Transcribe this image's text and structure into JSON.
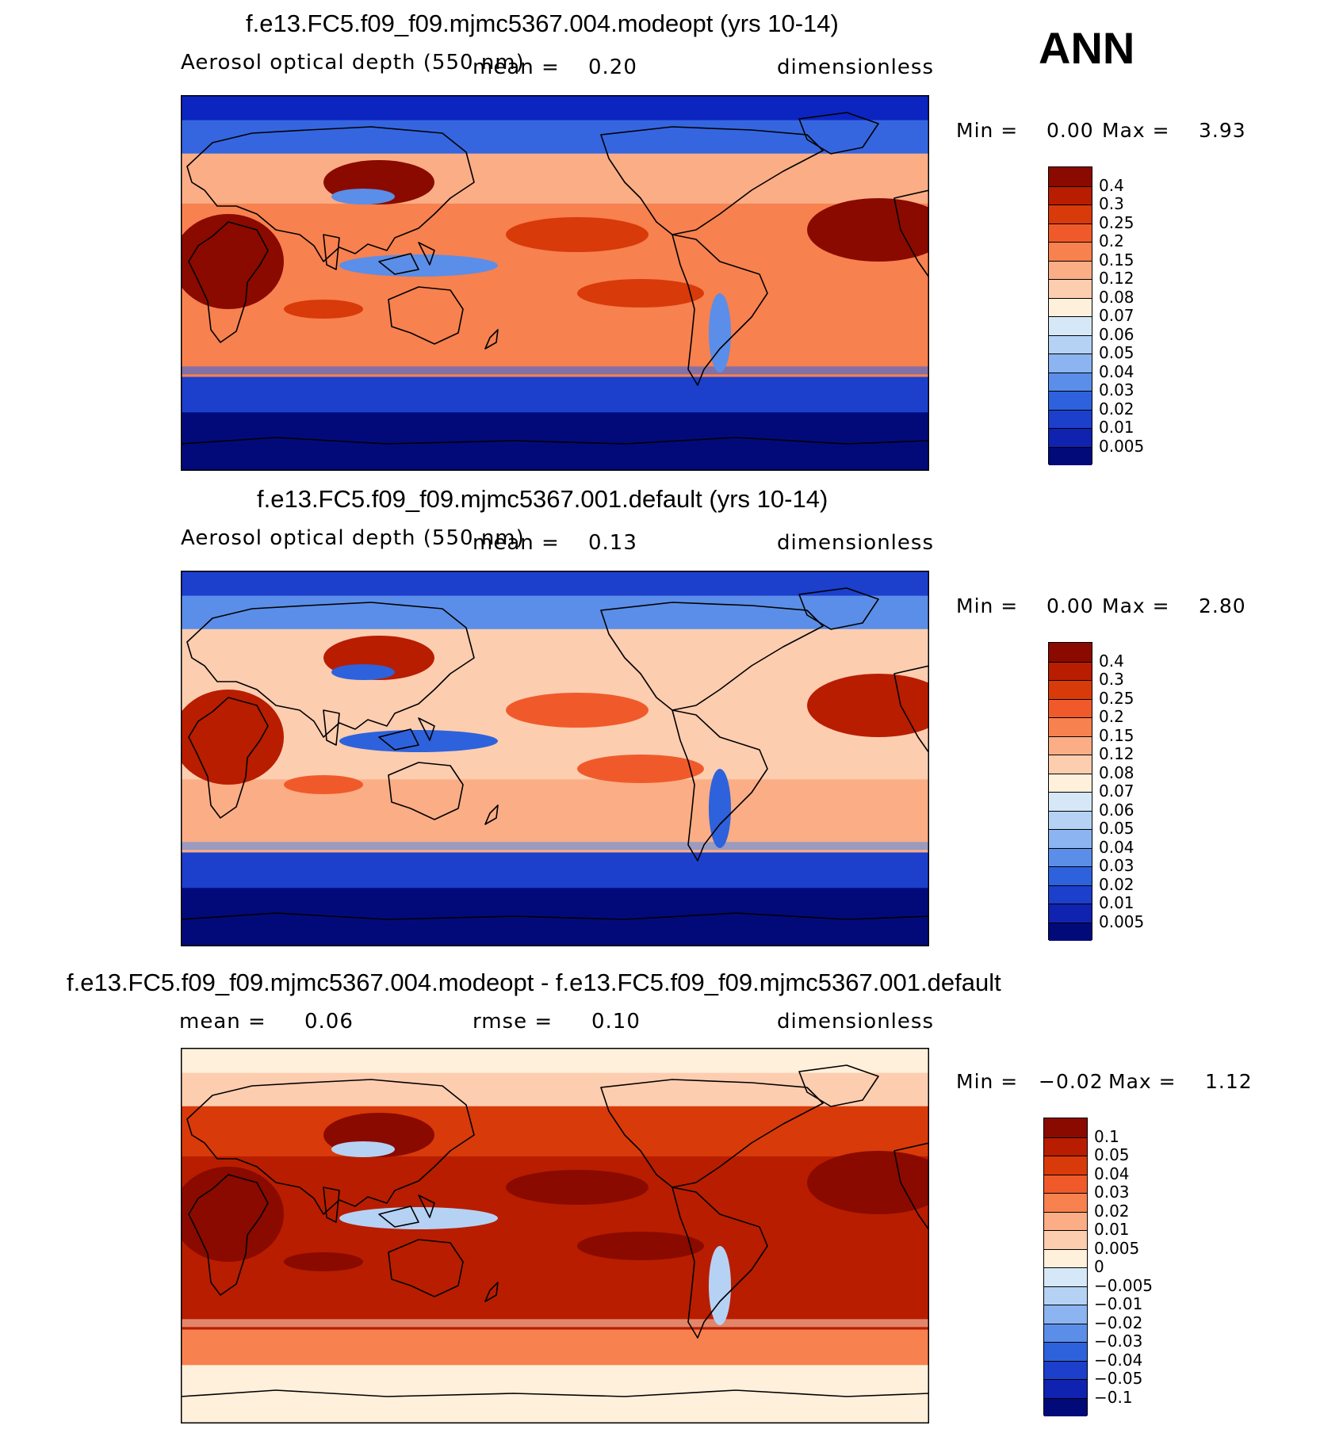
{
  "season": "ANN",
  "panels": [
    {
      "title": "f.e13.FC5.f09_f09.mjmc5367.004.modeopt (yrs 10-14)",
      "variable": "Aerosol optical depth (550 nm)",
      "mean_label": "mean =",
      "mean_value": "0.20",
      "units": "dimensionless",
      "min_label": "Min =",
      "min_value": "0.00",
      "max_label": "Max =",
      "max_value": "3.93",
      "palette": "abs",
      "colorbar": {
        "labels": [
          "0.4",
          "0.3",
          "0.25",
          "0.2",
          "0.15",
          "0.12",
          "0.08",
          "0.07",
          "0.06",
          "0.05",
          "0.04",
          "0.03",
          "0.02",
          "0.01",
          "0.005"
        ],
        "colors": [
          "#8a0a00",
          "#b81d00",
          "#d93a0a",
          "#f05a2a",
          "#f7814f",
          "#fbad85",
          "#fdcdb0",
          "#fff0dc",
          "#d6e8f8",
          "#b5d2f4",
          "#8bb4f0",
          "#5b8ee8",
          "#2d62dc",
          "#1c3fcc",
          "#0f22b0",
          "#020a7a"
        ]
      },
      "map_bands": {
        "north_polar": "#0c25c0",
        "north_subpolar": "#3566e0",
        "midlat": "#fbad85",
        "tropics": "#f7814f",
        "south_mid": "#f7814f",
        "southern_ocean": "#1c3fcc",
        "antarctic": "#020a7a",
        "hotspot": "#8a0a00",
        "warm": "#d93a0a",
        "cool": "#5b8ee8"
      }
    },
    {
      "title": "f.e13.FC5.f09_f09.mjmc5367.001.default (yrs 10-14)",
      "variable": "Aerosol optical depth (550 nm)",
      "mean_label": "mean =",
      "mean_value": "0.13",
      "units": "dimensionless",
      "min_label": "Min =",
      "min_value": "0.00",
      "max_label": "Max =",
      "max_value": "2.80",
      "palette": "abs",
      "colorbar": {
        "labels": [
          "0.4",
          "0.3",
          "0.25",
          "0.2",
          "0.15",
          "0.12",
          "0.08",
          "0.07",
          "0.06",
          "0.05",
          "0.04",
          "0.03",
          "0.02",
          "0.01",
          "0.005"
        ],
        "colors": [
          "#8a0a00",
          "#b81d00",
          "#d93a0a",
          "#f05a2a",
          "#f7814f",
          "#fbad85",
          "#fdcdb0",
          "#fff0dc",
          "#d6e8f8",
          "#b5d2f4",
          "#8bb4f0",
          "#5b8ee8",
          "#2d62dc",
          "#1c3fcc",
          "#0f22b0",
          "#020a7a"
        ]
      },
      "map_bands": {
        "north_polar": "#1c3fcc",
        "north_subpolar": "#5b8ee8",
        "midlat": "#fdcdb0",
        "tropics": "#fdcdb0",
        "south_mid": "#fbad85",
        "southern_ocean": "#1c3fcc",
        "antarctic": "#020a7a",
        "hotspot": "#b81d00",
        "warm": "#f05a2a",
        "cool": "#2d62dc"
      }
    },
    {
      "title": "f.e13.FC5.f09_f09.mjmc5367.004.modeopt - f.e13.FC5.f09_f09.mjmc5367.001.default",
      "variable": "mean =",
      "mean_label": "",
      "mean_value": "0.06",
      "rmse_label": "rmse =",
      "rmse_value": "0.10",
      "units": "dimensionless",
      "min_label": "Min =",
      "min_value": "−0.02",
      "max_label": "Max =",
      "max_value": "1.12",
      "palette": "diff",
      "colorbar": {
        "labels": [
          "0.1",
          "0.05",
          "0.04",
          "0.03",
          "0.02",
          "0.01",
          "0.005",
          "0",
          "−0.005",
          "−0.01",
          "−0.02",
          "−0.03",
          "−0.04",
          "−0.05",
          "−0.1"
        ],
        "colors": [
          "#8a0a00",
          "#b81d00",
          "#d93a0a",
          "#f05a2a",
          "#f7814f",
          "#fbad85",
          "#fdcdb0",
          "#fff0dc",
          "#d6e8f8",
          "#b5d2f4",
          "#8bb4f0",
          "#5b8ee8",
          "#2d62dc",
          "#1c3fcc",
          "#0f22b0",
          "#020a7a"
        ]
      },
      "map_bands": {
        "north_polar": "#fff0dc",
        "north_subpolar": "#fdcdb0",
        "midlat": "#d93a0a",
        "tropics": "#b81d00",
        "south_mid": "#b81d00",
        "southern_ocean": "#f7814f",
        "antarctic": "#fff0dc",
        "hotspot": "#8a0a00",
        "warm": "#8a0a00",
        "cool": "#b5d2f4"
      }
    }
  ]
}
